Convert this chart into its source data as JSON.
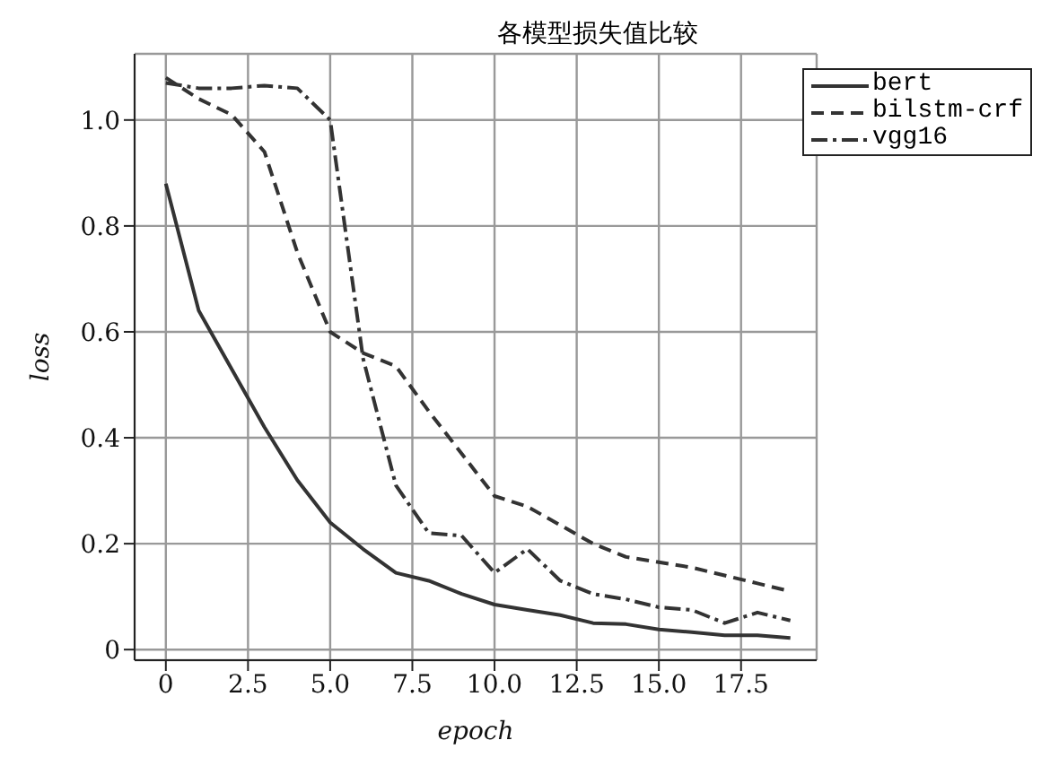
{
  "chart_data": {
    "type": "line",
    "title": "各模型损失值比较",
    "xlabel": "epoch",
    "ylabel": "loss",
    "x": [
      0,
      1,
      2,
      3,
      4,
      5,
      6,
      7,
      8,
      9,
      10,
      11,
      12,
      13,
      14,
      15,
      16,
      17,
      18,
      19
    ],
    "series": [
      {
        "name": "bert",
        "color": "#333333",
        "line_style": "solid",
        "values": [
          0.88,
          0.64,
          0.53,
          0.42,
          0.32,
          0.24,
          0.19,
          0.145,
          0.13,
          0.105,
          0.085,
          0.075,
          0.065,
          0.05,
          0.048,
          0.038,
          0.033,
          0.027,
          0.027,
          0.022
        ]
      },
      {
        "name": "bilstm-crf",
        "color": "#333333",
        "line_style": "dashed",
        "values": [
          1.08,
          1.04,
          1.01,
          0.94,
          0.75,
          0.6,
          0.56,
          0.535,
          0.45,
          0.37,
          0.29,
          0.27,
          0.235,
          0.2,
          0.175,
          0.165,
          0.155,
          0.14,
          0.125,
          0.11
        ]
      },
      {
        "name": "vgg16",
        "color": "#333333",
        "line_style": "dashdot",
        "values": [
          1.07,
          1.06,
          1.06,
          1.065,
          1.06,
          1.0,
          0.55,
          0.31,
          0.22,
          0.215,
          0.145,
          0.19,
          0.13,
          0.105,
          0.095,
          0.08,
          0.075,
          0.05,
          0.07,
          0.055
        ]
      }
    ],
    "xlim": [
      -0.95,
      19.8
    ],
    "xticks": [
      {
        "value": 0,
        "label": "0"
      },
      {
        "value": 2.5,
        "label": "2.5"
      },
      {
        "value": 5,
        "label": "5.0"
      },
      {
        "value": 7.5,
        "label": "7.5"
      },
      {
        "value": 10,
        "label": "10.0"
      },
      {
        "value": 12.5,
        "label": "12.5"
      },
      {
        "value": 15,
        "label": "15.0"
      },
      {
        "value": 17.5,
        "label": "17.5"
      }
    ],
    "ylim": [
      -0.02,
      1.125
    ],
    "yticks": [
      {
        "value": 0,
        "label": "0"
      },
      {
        "value": 0.2,
        "label": "0.2"
      },
      {
        "value": 0.4,
        "label": "0.4"
      },
      {
        "value": 0.6,
        "label": "0.6"
      },
      {
        "value": 0.8,
        "label": "0.8"
      },
      {
        "value": 1,
        "label": "1.0"
      }
    ],
    "grid": true,
    "legend": "top right",
    "marker": "none"
  }
}
